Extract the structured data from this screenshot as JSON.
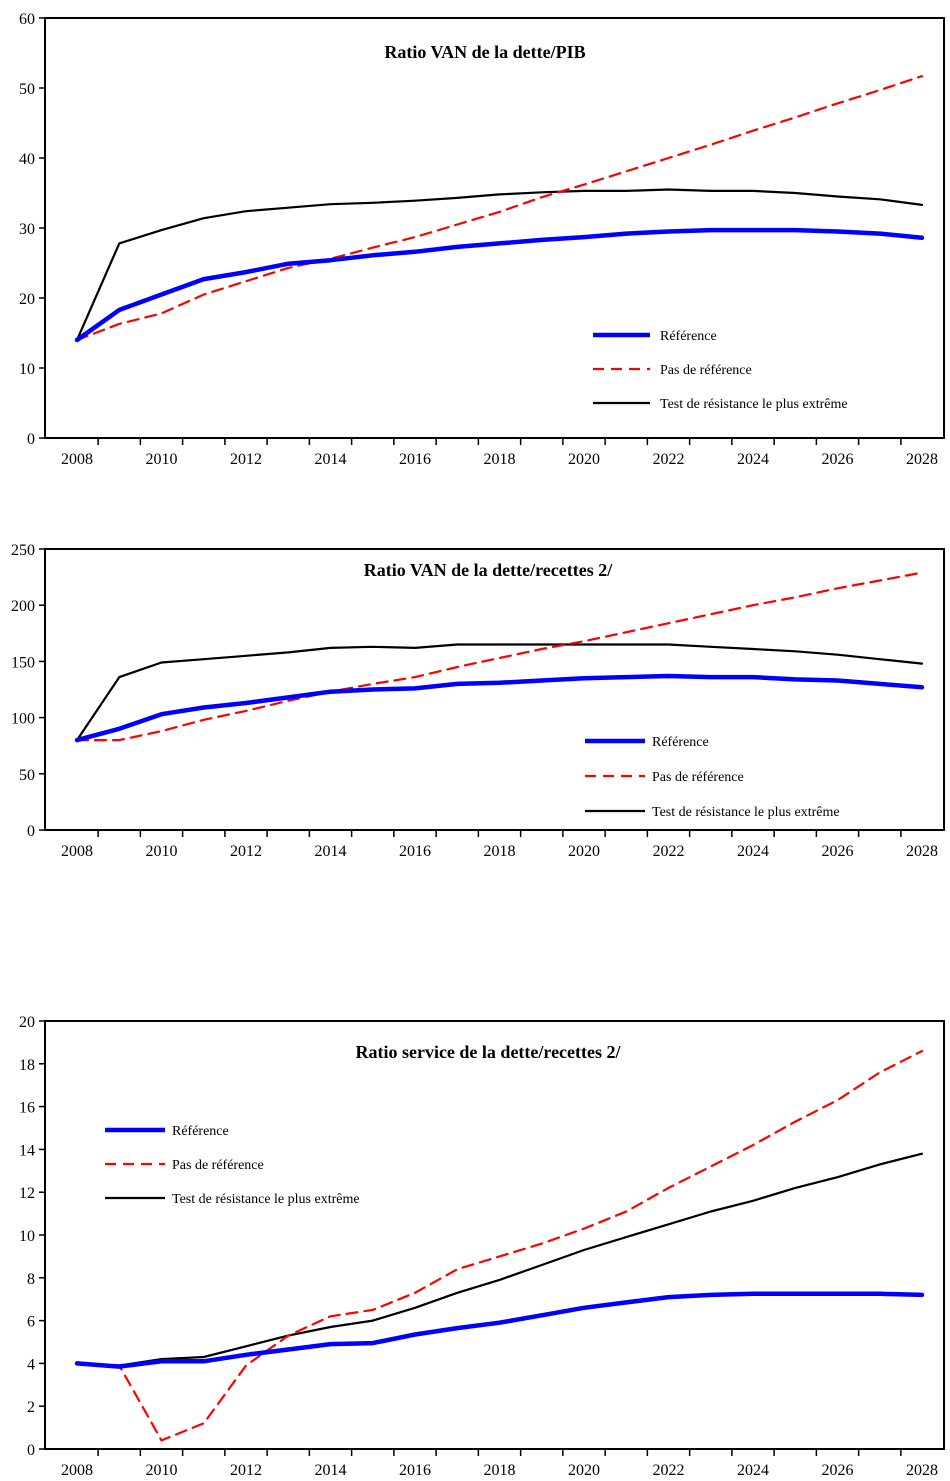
{
  "colors": {
    "reference": "#0000ff",
    "no_reference": "#ff0000",
    "stress": "#000000"
  },
  "chart_data": [
    {
      "type": "line",
      "title": "Ratio VAN  de la dette/PIB",
      "x": [
        2008,
        2009,
        2010,
        2011,
        2012,
        2013,
        2014,
        2015,
        2016,
        2017,
        2018,
        2019,
        2020,
        2021,
        2022,
        2023,
        2024,
        2025,
        2026,
        2027,
        2028
      ],
      "xticks": [
        2008,
        2010,
        2012,
        2014,
        2016,
        2018,
        2020,
        2022,
        2024,
        2026,
        2028
      ],
      "ylim": [
        0,
        60
      ],
      "yticks": [
        0,
        10,
        20,
        30,
        40,
        50,
        60
      ],
      "legend_position": "bottom-right",
      "series": [
        {
          "name": "Référence",
          "style": "thick",
          "color": "#0000ff",
          "values": [
            14,
            18.3,
            20.5,
            22.7,
            23.7,
            24.9,
            25.4,
            26.1,
            26.6,
            27.3,
            27.8,
            28.3,
            28.7,
            29.2,
            29.5,
            29.7,
            29.7,
            29.7,
            29.5,
            29.2,
            28.6
          ]
        },
        {
          "name": "Pas de référence",
          "style": "dashed",
          "color": "#ff0000",
          "values": [
            14,
            16.3,
            17.8,
            20.5,
            22.4,
            24.3,
            25.6,
            27.2,
            28.7,
            30.5,
            32.3,
            34.4,
            36.2,
            38.1,
            40.0,
            41.9,
            43.9,
            45.8,
            47.8,
            49.7,
            51.7
          ]
        },
        {
          "name": "Test de résistance le plus extrême",
          "style": "solid",
          "color": "#000000",
          "values": [
            14,
            27.8,
            29.7,
            31.4,
            32.4,
            32.9,
            33.4,
            33.6,
            33.9,
            34.3,
            34.8,
            35.1,
            35.3,
            35.3,
            35.5,
            35.3,
            35.3,
            35.0,
            34.5,
            34.1,
            33.3
          ]
        }
      ]
    },
    {
      "type": "line",
      "title": "Ratio VAN de la dette/recettes 2/",
      "x": [
        2008,
        2009,
        2010,
        2011,
        2012,
        2013,
        2014,
        2015,
        2016,
        2017,
        2018,
        2019,
        2020,
        2021,
        2022,
        2023,
        2024,
        2025,
        2026,
        2027,
        2028
      ],
      "xticks": [
        2008,
        2010,
        2012,
        2014,
        2016,
        2018,
        2020,
        2022,
        2024,
        2026,
        2028
      ],
      "ylim": [
        0,
        250
      ],
      "yticks": [
        0,
        50,
        100,
        150,
        200,
        250
      ],
      "legend_position": "bottom-right",
      "series": [
        {
          "name": "Référence",
          "style": "thick",
          "color": "#0000ff",
          "values": [
            80,
            90,
            103,
            109,
            113,
            118,
            123,
            125,
            126,
            130,
            131,
            133,
            135,
            136,
            137,
            136,
            136,
            134,
            133,
            130,
            127
          ]
        },
        {
          "name": "Pas de référence",
          "style": "dashed",
          "color": "#ff0000",
          "values": [
            80,
            80,
            88,
            98,
            106,
            115,
            123,
            130,
            136,
            145,
            153,
            161,
            168,
            176,
            184,
            192,
            200,
            207,
            215,
            222,
            229
          ]
        },
        {
          "name": "Test de résistance le plus extrême",
          "style": "solid",
          "color": "#000000",
          "values": [
            80,
            136,
            149,
            152,
            155,
            158,
            162,
            163,
            162,
            165,
            165,
            165,
            165,
            165,
            165,
            163,
            161,
            159,
            156,
            152,
            148
          ]
        }
      ]
    },
    {
      "type": "line",
      "title": "Ratio service de la dette/recettes 2/",
      "x": [
        2008,
        2009,
        2010,
        2011,
        2012,
        2013,
        2014,
        2015,
        2016,
        2017,
        2018,
        2019,
        2020,
        2021,
        2022,
        2023,
        2024,
        2025,
        2026,
        2027,
        2028
      ],
      "xticks": [
        2008,
        2010,
        2012,
        2014,
        2016,
        2018,
        2020,
        2022,
        2024,
        2026,
        2028
      ],
      "ylim": [
        0,
        20
      ],
      "yticks": [
        0,
        2,
        4,
        6,
        8,
        10,
        12,
        14,
        16,
        18,
        20
      ],
      "legend_position": "top-left",
      "series": [
        {
          "name": "Référence",
          "style": "thick",
          "color": "#0000ff",
          "values": [
            4.0,
            3.85,
            4.1,
            4.1,
            4.4,
            4.65,
            4.9,
            4.95,
            5.35,
            5.65,
            5.9,
            6.25,
            6.6,
            6.85,
            7.1,
            7.2,
            7.25,
            7.25,
            7.25,
            7.25,
            7.2
          ]
        },
        {
          "name": "Pas de référence",
          "style": "dashed",
          "color": "#ff0000",
          "values": [
            4.0,
            3.9,
            0.4,
            1.2,
            3.9,
            5.3,
            6.2,
            6.5,
            7.3,
            8.4,
            9.0,
            9.6,
            10.3,
            11.1,
            12.2,
            13.2,
            14.2,
            15.3,
            16.3,
            17.6,
            18.6
          ]
        },
        {
          "name": "Test de résistance le plus extrême",
          "style": "solid",
          "color": "#000000",
          "values": [
            4.0,
            3.9,
            4.2,
            4.3,
            4.8,
            5.3,
            5.7,
            6.0,
            6.6,
            7.3,
            7.9,
            8.6,
            9.3,
            9.9,
            10.5,
            11.1,
            11.6,
            12.2,
            12.7,
            13.3,
            13.8
          ]
        }
      ]
    }
  ]
}
